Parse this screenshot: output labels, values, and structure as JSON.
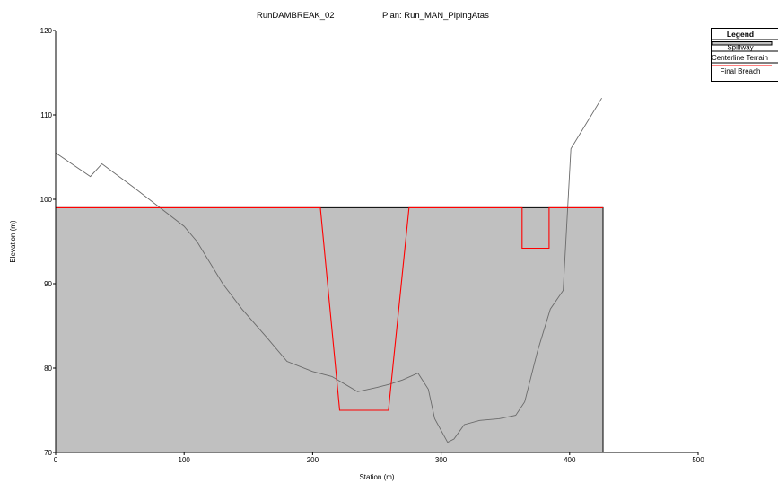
{
  "chart_data": {
    "type": "area",
    "title": "RunDAMBREAK_02",
    "subtitle": "Plan: Run_MAN_PipingAtas",
    "xlabel": "Station (m)",
    "ylabel": "Elevation (m)",
    "xlim": [
      0,
      500
    ],
    "ylim": [
      70,
      120
    ],
    "xticks": [
      "0",
      "100",
      "200",
      "300",
      "400",
      "500"
    ],
    "yticks": [
      "70",
      "80",
      "90",
      "100",
      "110",
      "120"
    ],
    "legend": {
      "title": "Legend",
      "placement": "top-right",
      "entries": [
        "Spillway",
        "Centerline Terrain",
        "Final Breach"
      ]
    },
    "colors": {
      "dam_fill": "#c0c0c0",
      "terrain": "#6a6a6a",
      "breach": "#ff0000",
      "outline": "#000000"
    },
    "dam": {
      "name": "Spillway",
      "points": [
        [
          0,
          70
        ],
        [
          0,
          99
        ],
        [
          426,
          99
        ],
        [
          426,
          70
        ]
      ]
    },
    "series": [
      {
        "name": "Centerline Terrain",
        "points": [
          [
            0,
            105.5
          ],
          [
            27,
            102.7
          ],
          [
            36,
            104.2
          ],
          [
            60,
            101.5
          ],
          [
            100,
            96.8
          ],
          [
            110,
            95
          ],
          [
            130,
            90
          ],
          [
            145,
            87
          ],
          [
            165,
            83.5
          ],
          [
            180,
            80.8
          ],
          [
            200,
            79.6
          ],
          [
            215,
            79
          ],
          [
            235,
            77.2
          ],
          [
            250,
            77.7
          ],
          [
            260,
            78.1
          ],
          [
            270,
            78.6
          ],
          [
            282,
            79.4
          ],
          [
            290,
            77.5
          ],
          [
            295,
            74
          ],
          [
            305,
            71.2
          ],
          [
            310,
            71.6
          ],
          [
            318,
            73.3
          ],
          [
            330,
            73.8
          ],
          [
            345,
            74
          ],
          [
            358,
            74.4
          ],
          [
            365,
            76
          ],
          [
            375,
            82
          ],
          [
            385,
            87
          ],
          [
            395,
            89.2
          ],
          [
            401,
            106
          ],
          [
            425,
            112
          ]
        ]
      },
      {
        "name": "Final Breach",
        "points": [
          [
            0,
            99
          ],
          [
            206,
            99
          ],
          [
            221,
            75
          ],
          [
            259,
            75
          ],
          [
            275,
            99
          ],
          [
            363,
            99
          ],
          [
            363,
            94.2
          ],
          [
            384,
            94.2
          ],
          [
            384,
            99
          ],
          [
            426,
            99
          ]
        ]
      }
    ]
  }
}
